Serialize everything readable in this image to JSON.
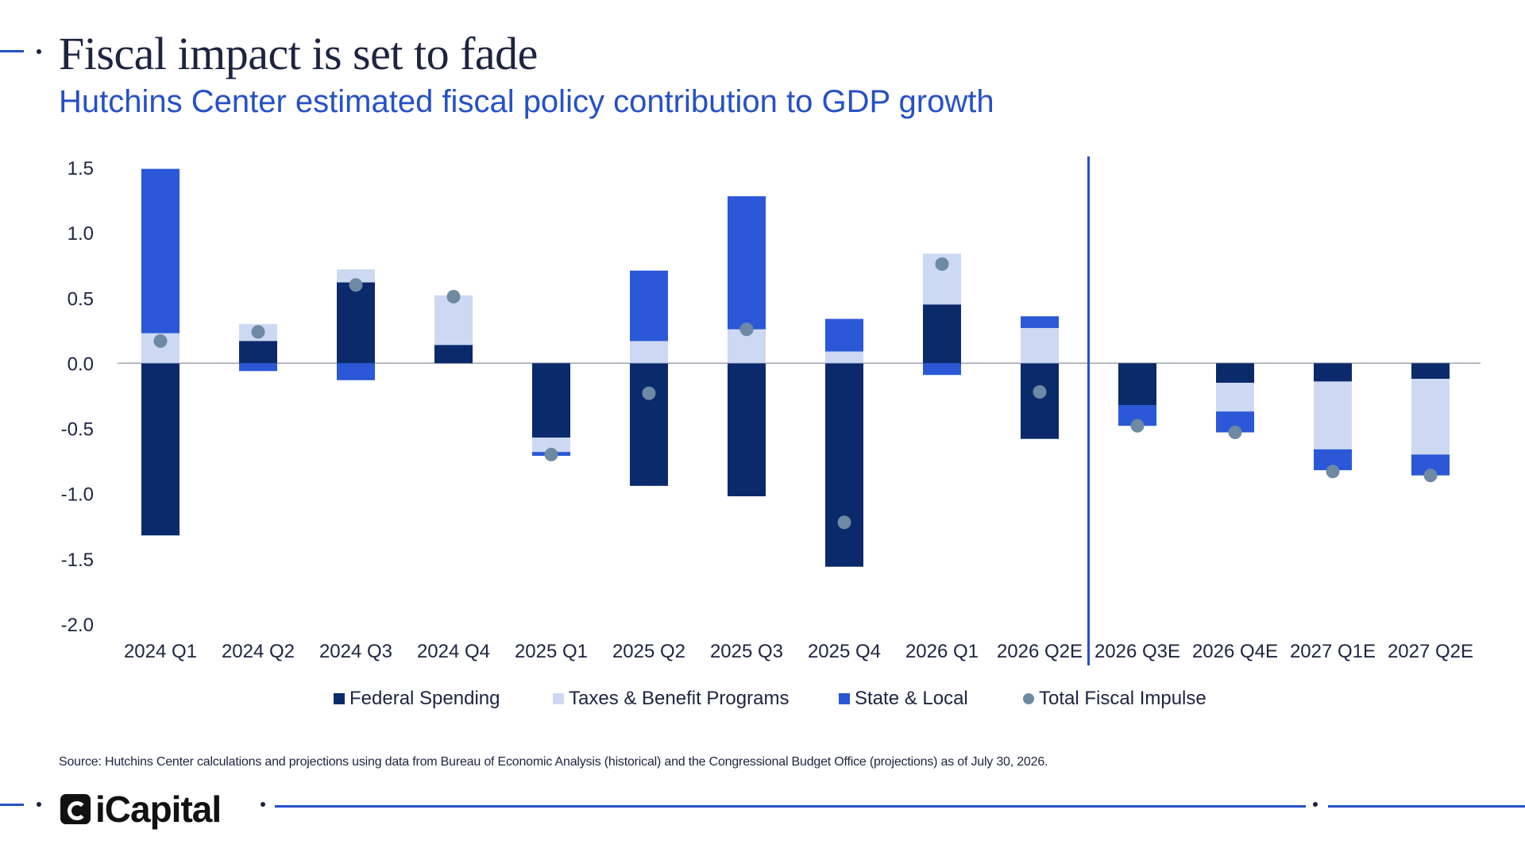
{
  "header": {
    "title": "Fiscal impact is set to fade",
    "subtitle": "Hutchins Center estimated fiscal policy contribution to GDP growth"
  },
  "colors": {
    "federal": "#0b2a6b",
    "taxes": "#cdd8f3",
    "state": "#2a58d6",
    "total": "#6e89a3",
    "accent": "#2550c7",
    "text": "#1d2440"
  },
  "chart_data": {
    "type": "bar",
    "stacked": true,
    "categories": [
      "2024 Q1",
      "2024 Q2",
      "2024 Q3",
      "2024 Q4",
      "2025 Q1",
      "2025 Q2",
      "2025 Q3",
      "2025 Q4",
      "2026 Q1",
      "2026 Q2E",
      "2026 Q3E",
      "2026 Q4E",
      "2027 Q1E",
      "2027 Q2E"
    ],
    "series": [
      {
        "name": "Federal Spending",
        "values": [
          -1.32,
          0.17,
          0.62,
          0.14,
          -0.57,
          -0.94,
          -1.02,
          -1.56,
          0.45,
          -0.58,
          -0.32,
          -0.15,
          -0.14,
          -0.12
        ]
      },
      {
        "name": "Taxes & Benefit Programs",
        "values": [
          0.23,
          0.13,
          0.1,
          0.38,
          -0.11,
          0.17,
          0.26,
          0.09,
          0.39,
          0.27,
          0.0,
          -0.22,
          -0.52,
          -0.58
        ]
      },
      {
        "name": "State & Local",
        "values": [
          1.26,
          -0.06,
          -0.13,
          0.0,
          -0.03,
          0.54,
          1.02,
          0.25,
          -0.09,
          0.09,
          -0.16,
          -0.16,
          -0.16,
          -0.16
        ]
      }
    ],
    "total_fiscal_impulse": {
      "name": "Total Fiscal Impulse",
      "values": [
        0.17,
        0.24,
        0.6,
        0.51,
        -0.7,
        -0.23,
        0.26,
        -1.22,
        0.76,
        -0.22,
        -0.48,
        -0.53,
        -0.83,
        -0.86
      ]
    },
    "ylim": [
      -2.0,
      1.5
    ],
    "yticks": [
      "1.5",
      "1.0",
      "0.5",
      "0.0",
      "-0.5",
      "-1.0",
      "-1.5",
      "-2.0"
    ],
    "yticks_values": [
      1.5,
      1.0,
      0.5,
      0.0,
      -0.5,
      -1.0,
      -1.5,
      -2.0
    ],
    "projection_start_after": "2026 Q2E",
    "legend_position": "bottom",
    "grid": false
  },
  "legend": {
    "federal": "Federal Spending",
    "taxes": "Taxes & Benefit Programs",
    "state": "State & Local",
    "total": "Total Fiscal Impulse"
  },
  "footer": {
    "source": "Source: Hutchins Center calculations and projections using data from Bureau of Economic Analysis (historical) and the Congressional Budget Office (projections) as of July 30, 2026.",
    "brand": "iCapital",
    "logo_icon": "icapital-logo-icon"
  }
}
